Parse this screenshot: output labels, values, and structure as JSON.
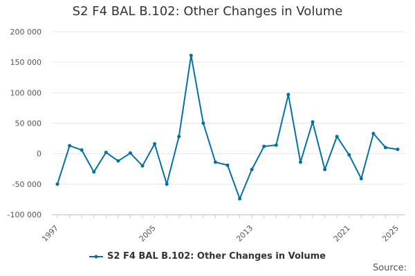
{
  "chart_data": {
    "type": "line",
    "title": "S2 F4 BAL B.102: Other Changes in Volume",
    "xlabel": "",
    "ylabel": "",
    "x": [
      1997,
      1998,
      1999,
      2000,
      2001,
      2002,
      2003,
      2004,
      2005,
      2006,
      2007,
      2008,
      2009,
      2010,
      2011,
      2012,
      2013,
      2014,
      2015,
      2016,
      2017,
      2018,
      2019,
      2020,
      2021,
      2022,
      2023,
      2024,
      2025
    ],
    "series": [
      {
        "name": "S2 F4 BAL B.102: Other Changes in Volume",
        "color": "#0071a7",
        "values": [
          -50000,
          13000,
          6000,
          -30000,
          2000,
          -12000,
          1000,
          -20000,
          16000,
          -50000,
          28000,
          161000,
          50000,
          -14000,
          -19000,
          -74000,
          -26000,
          12000,
          14000,
          97000,
          -14000,
          52000,
          -26000,
          28000,
          -2000,
          -41000,
          33000,
          10000,
          7000
        ]
      }
    ],
    "ylim": [
      -100000,
      200000
    ],
    "yticks": [
      -100000,
      -50000,
      0,
      50000,
      100000,
      150000,
      200000
    ],
    "ytick_labels": [
      "-100 000",
      "-50 000",
      "0",
      "50 000",
      "100 000",
      "150 000",
      "200 000"
    ],
    "xticks": [
      1997,
      2005,
      2013,
      2021,
      2025
    ],
    "grid": true,
    "legend_position": "bottom"
  },
  "legend": {
    "label": "S2 F4 BAL B.102: Other Changes in Volume"
  },
  "source_label": "Source:"
}
